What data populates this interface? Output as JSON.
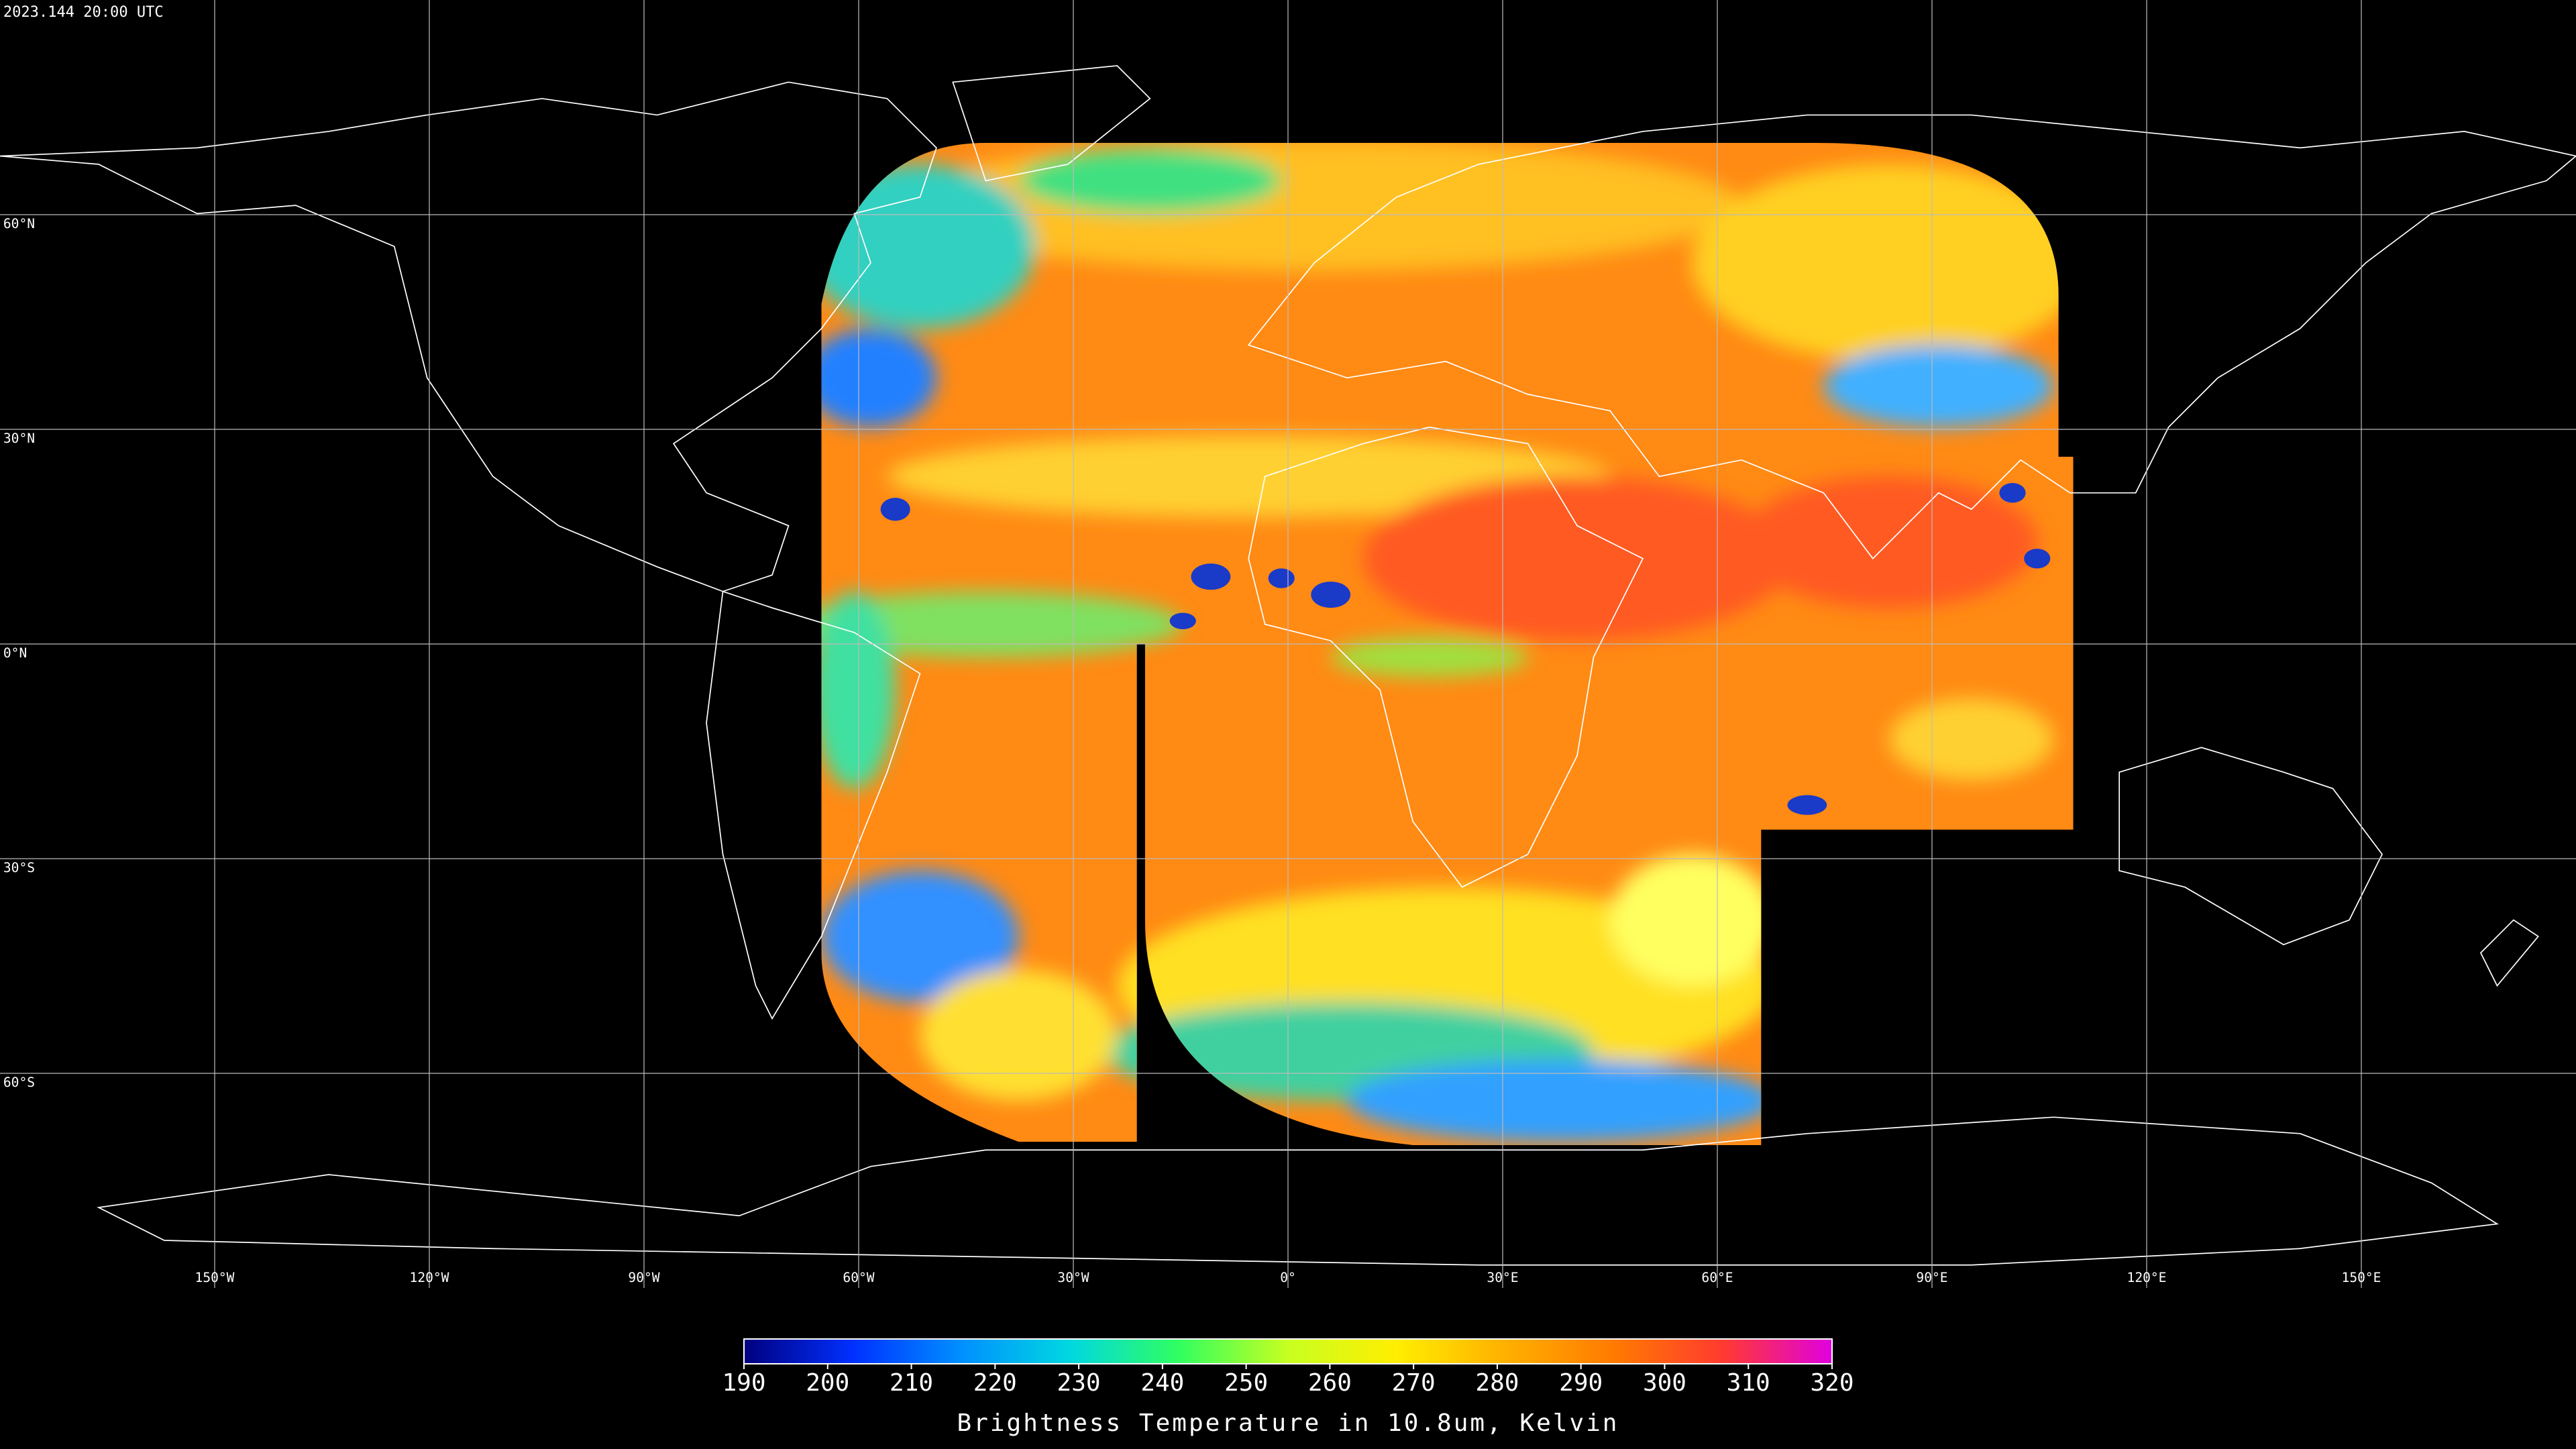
{
  "timestamp": "2023.144 20:00 UTC",
  "map": {
    "lon_range": [
      -180,
      180
    ],
    "lat_range": [
      90,
      -90
    ],
    "lat_ticks": [
      {
        "value": 60,
        "label": "60°N"
      },
      {
        "value": 30,
        "label": "30°N"
      },
      {
        "value": 0,
        "label": "0°N"
      },
      {
        "value": -30,
        "label": "30°S"
      },
      {
        "value": -60,
        "label": "60°S"
      }
    ],
    "lon_ticks": [
      {
        "value": -150,
        "label": "150°W"
      },
      {
        "value": -120,
        "label": "120°W"
      },
      {
        "value": -90,
        "label": "90°W"
      },
      {
        "value": -60,
        "label": "60°W"
      },
      {
        "value": -30,
        "label": "30°W"
      },
      {
        "value": 0,
        "label": "0°"
      },
      {
        "value": 30,
        "label": "30°E"
      },
      {
        "value": 60,
        "label": "60°E"
      },
      {
        "value": 90,
        "label": "90°E"
      },
      {
        "value": 120,
        "label": "120°E"
      },
      {
        "value": 150,
        "label": "150°E"
      }
    ]
  },
  "colorbar": {
    "label": "Brightness Temperature in 10.8um, Kelvin",
    "range": [
      190,
      320
    ],
    "ticks": [
      190,
      200,
      210,
      220,
      230,
      240,
      250,
      260,
      270,
      280,
      290,
      300,
      310,
      320
    ],
    "colors": [
      "#00007f",
      "#0030ff",
      "#0090ff",
      "#00d8e0",
      "#30ff60",
      "#c8ff20",
      "#ffee00",
      "#ffb000",
      "#ff7a00",
      "#ff3a30",
      "#e000e0"
    ]
  }
}
